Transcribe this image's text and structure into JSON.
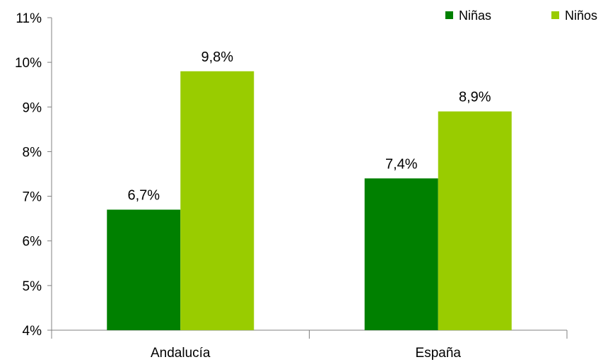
{
  "chart_data": {
    "type": "bar",
    "categories": [
      "Andalucía",
      "España"
    ],
    "series": [
      {
        "name": "Niñas",
        "color": "#008000",
        "values": [
          6.7,
          7.4
        ],
        "labels": [
          "6,7%",
          "7,4%"
        ]
      },
      {
        "name": "Niños",
        "color": "#99cc00",
        "values": [
          9.8,
          8.9
        ],
        "labels": [
          "9,8%",
          "8,9%"
        ]
      }
    ],
    "ylim": [
      4,
      11
    ],
    "yticks": [
      4,
      5,
      6,
      7,
      8,
      9,
      10,
      11
    ],
    "ytick_labels": [
      "4%",
      "5%",
      "6%",
      "7%",
      "8%",
      "9%",
      "10%",
      "11%"
    ],
    "grid": false,
    "legend_position": "top-right"
  }
}
